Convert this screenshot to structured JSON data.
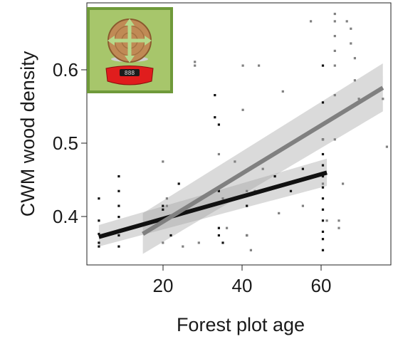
{
  "chart_data": {
    "type": "scatter",
    "title": "",
    "xlabel": "Forest plot age",
    "ylabel": "CWM wood density",
    "xlim": [
      2,
      78
    ],
    "ylim": [
      0.33,
      0.685
    ],
    "x_ticks": [
      20,
      40,
      60
    ],
    "y_ticks": [
      0.4,
      0.5,
      0.6
    ],
    "x_tick_labels": [
      "20",
      "40",
      "60"
    ],
    "y_tick_labels": [
      "0.4",
      "0.5",
      "0.6"
    ],
    "grid": false,
    "legend": "none",
    "icon": "scale-weighing-wood-icon",
    "series": [
      {
        "color": "#111111",
        "points": [
          {
            "x": 5,
            "y": 0.36
          },
          {
            "x": 5,
            "y": 0.372
          },
          {
            "x": 5,
            "y": 0.39
          },
          {
            "x": 5,
            "y": 0.42
          },
          {
            "x": 5,
            "y": 0.355
          },
          {
            "x": 10,
            "y": 0.45
          },
          {
            "x": 10,
            "y": 0.43
          },
          {
            "x": 10,
            "y": 0.41
          },
          {
            "x": 10,
            "y": 0.395
          },
          {
            "x": 10,
            "y": 0.37
          },
          {
            "x": 10,
            "y": 0.355
          },
          {
            "x": 21,
            "y": 0.41
          },
          {
            "x": 21,
            "y": 0.405
          },
          {
            "x": 21,
            "y": 0.39
          },
          {
            "x": 23,
            "y": 0.37
          },
          {
            "x": 25,
            "y": 0.44
          },
          {
            "x": 34,
            "y": 0.56
          },
          {
            "x": 34,
            "y": 0.53
          },
          {
            "x": 35,
            "y": 0.52
          },
          {
            "x": 35,
            "y": 0.43
          },
          {
            "x": 35,
            "y": 0.38
          },
          {
            "x": 35,
            "y": 0.37
          },
          {
            "x": 36,
            "y": 0.36
          },
          {
            "x": 42,
            "y": 0.41
          },
          {
            "x": 42,
            "y": 0.37
          },
          {
            "x": 49,
            "y": 0.45
          },
          {
            "x": 53,
            "y": 0.43
          },
          {
            "x": 56,
            "y": 0.46
          },
          {
            "x": 61,
            "y": 0.6
          },
          {
            "x": 61,
            "y": 0.55
          },
          {
            "x": 61,
            "y": 0.52
          },
          {
            "x": 61,
            "y": 0.5
          },
          {
            "x": 61,
            "y": 0.48
          },
          {
            "x": 61,
            "y": 0.465
          },
          {
            "x": 61,
            "y": 0.45
          },
          {
            "x": 61,
            "y": 0.435
          },
          {
            "x": 61,
            "y": 0.42
          },
          {
            "x": 61,
            "y": 0.405
          },
          {
            "x": 61,
            "y": 0.39
          },
          {
            "x": 61,
            "y": 0.375
          },
          {
            "x": 61,
            "y": 0.365
          },
          {
            "x": 61,
            "y": 0.35
          }
        ],
        "fit": {
          "x": [
            5,
            62
          ],
          "y": [
            0.368,
            0.455
          ]
        },
        "ci": {
          "x": [
            5,
            62
          ],
          "lower": [
            0.355,
            0.437
          ],
          "upper": [
            0.384,
            0.474
          ]
        }
      },
      {
        "color": "#808080",
        "points": [
          {
            "x": 21,
            "y": 0.47
          },
          {
            "x": 21,
            "y": 0.36
          },
          {
            "x": 22,
            "y": 0.42
          },
          {
            "x": 22,
            "y": 0.41
          },
          {
            "x": 26,
            "y": 0.355
          },
          {
            "x": 29,
            "y": 0.6
          },
          {
            "x": 29,
            "y": 0.605
          },
          {
            "x": 30,
            "y": 0.36
          },
          {
            "x": 33,
            "y": 0.41
          },
          {
            "x": 35,
            "y": 0.48
          },
          {
            "x": 36,
            "y": 0.42
          },
          {
            "x": 37,
            "y": 0.38
          },
          {
            "x": 39,
            "y": 0.47
          },
          {
            "x": 41,
            "y": 0.6
          },
          {
            "x": 41,
            "y": 0.54
          },
          {
            "x": 42,
            "y": 0.43
          },
          {
            "x": 42,
            "y": 0.37
          },
          {
            "x": 43,
            "y": 0.35
          },
          {
            "x": 44,
            "y": 0.43
          },
          {
            "x": 45,
            "y": 0.6
          },
          {
            "x": 46,
            "y": 0.46
          },
          {
            "x": 50,
            "y": 0.4
          },
          {
            "x": 51,
            "y": 0.565
          },
          {
            "x": 56,
            "y": 0.41
          },
          {
            "x": 58,
            "y": 0.66
          },
          {
            "x": 61,
            "y": 0.5
          },
          {
            "x": 61,
            "y": 0.44
          },
          {
            "x": 62,
            "y": 0.39
          },
          {
            "x": 64,
            "y": 0.67
          },
          {
            "x": 64,
            "y": 0.66
          },
          {
            "x": 64,
            "y": 0.64
          },
          {
            "x": 64,
            "y": 0.62
          },
          {
            "x": 64,
            "y": 0.6
          },
          {
            "x": 64,
            "y": 0.56
          },
          {
            "x": 64,
            "y": 0.53
          },
          {
            "x": 64,
            "y": 0.5
          },
          {
            "x": 65,
            "y": 0.38
          },
          {
            "x": 65,
            "y": 0.39
          },
          {
            "x": 66,
            "y": 0.44
          },
          {
            "x": 67,
            "y": 0.66
          },
          {
            "x": 68,
            "y": 0.65
          },
          {
            "x": 68,
            "y": 0.63
          },
          {
            "x": 69,
            "y": 0.61
          },
          {
            "x": 69,
            "y": 0.58
          },
          {
            "x": 70,
            "y": 0.555
          },
          {
            "x": 76,
            "y": 0.555
          },
          {
            "x": 77,
            "y": 0.49
          }
        ],
        "fit": {
          "x": [
            16,
            76
          ],
          "y": [
            0.372,
            0.57
          ]
        },
        "ci": {
          "x": [
            16,
            76
          ],
          "lower": [
            0.345,
            0.538
          ],
          "upper": [
            0.4,
            0.603
          ]
        }
      }
    ]
  }
}
